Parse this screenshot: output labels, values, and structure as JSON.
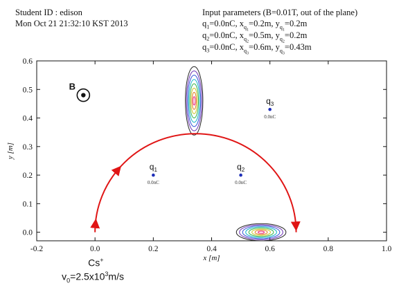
{
  "header": {
    "student_id": "Student ID : edison",
    "timestamp": "Mon Oct 21 21:32:10 KST 2013",
    "input_title": "Input parameters (B=0.01T, out of the plane)",
    "charges": [
      {
        "label": "q",
        "index": "1",
        "value": "0.0nC",
        "x": "0.2m",
        "y": "0.2m"
      },
      {
        "label": "q",
        "index": "2",
        "value": "0.0nC",
        "x": "0.5m",
        "y": "0.2m"
      },
      {
        "label": "q",
        "index": "3",
        "value": "0.0nC",
        "x": "0.6m",
        "y": "0.43m"
      }
    ]
  },
  "chart_data": {
    "type": "scatter",
    "xlabel": "x [m]",
    "ylabel": "y [m]",
    "xlim": [
      -0.2,
      1.0
    ],
    "ylim": [
      -0.03,
      0.6
    ],
    "x_ticks": [
      "-0.2",
      "0.0",
      "0.2",
      "0.4",
      "0.6",
      "0.8",
      "1.0"
    ],
    "y_ticks": [
      "0.0",
      "0.1",
      "0.2",
      "0.3",
      "0.4",
      "0.5",
      "0.6"
    ],
    "x_tick_values": [
      -0.2,
      0.0,
      0.2,
      0.4,
      0.6,
      0.8,
      1.0
    ],
    "y_tick_values": [
      0.0,
      0.1,
      0.2,
      0.3,
      0.4,
      0.5,
      0.6
    ],
    "charges": [
      {
        "name": "q",
        "sub": "1",
        "label": "0.0nC",
        "x": 0.2,
        "y": 0.2
      },
      {
        "name": "q",
        "sub": "2",
        "label": "0.0nC",
        "x": 0.5,
        "y": 0.2
      },
      {
        "name": "q",
        "sub": "3",
        "label": "0.0nC",
        "x": 0.6,
        "y": 0.43
      }
    ],
    "trajectory": {
      "center_x": 0.345,
      "center_y": 0.0,
      "radius": 0.345,
      "color": "#e01515"
    },
    "b_field_marker": {
      "label": "B",
      "x": -0.04,
      "y": 0.48
    },
    "contour_colors": [
      "#222222",
      "#6a2fb5",
      "#2a4fd8",
      "#11b3c9",
      "#34b34a",
      "#c9c424",
      "#e07b1c",
      "#e8207a"
    ],
    "contours": [
      {
        "center_x": 0.34,
        "center_y": 0.46,
        "rx": 0.03,
        "ry": 0.12
      },
      {
        "center_x": 0.57,
        "center_y": 0.0,
        "rx": 0.085,
        "ry": 0.03
      }
    ],
    "grid": false
  },
  "annotations": {
    "particle": "Cs",
    "particle_sup": "+",
    "velocity_prefix": "v",
    "velocity_sub": "0",
    "velocity_value": "=2.5x10",
    "velocity_exp": "3",
    "velocity_unit": "m/s"
  }
}
